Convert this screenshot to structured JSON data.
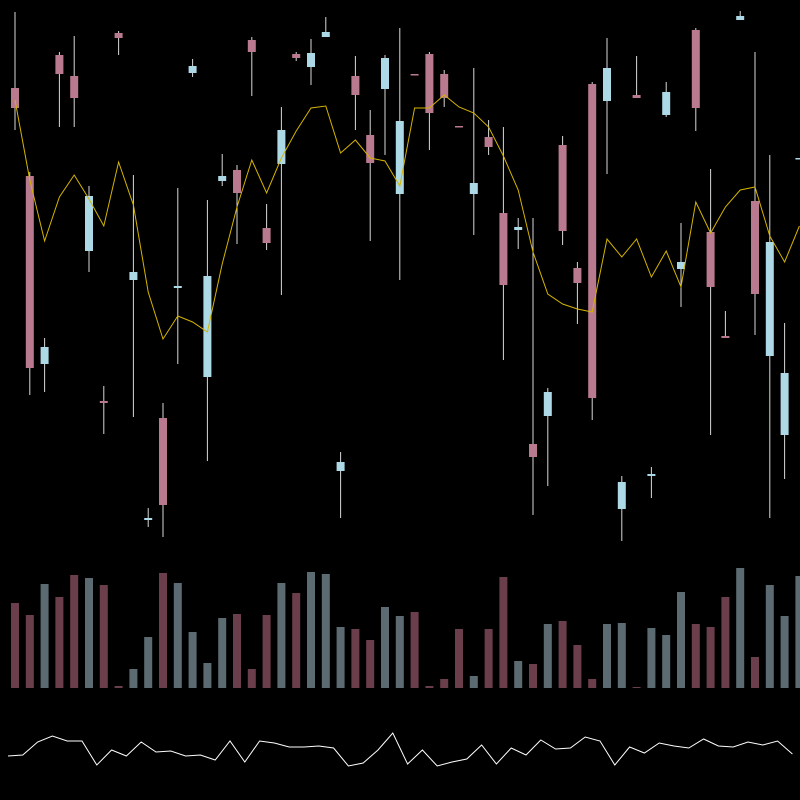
{
  "chart_data": {
    "type": "candlestick",
    "up_color": "#add8e6",
    "down_color": "#b97a8f",
    "volume_up_color": "#5b6b71",
    "volume_down_color": "#6b3e4c",
    "ma_color": "#d4b400",
    "indicator_color": "#ffffff",
    "ylim": [
      0,
      800
    ],
    "volume_ylim": [
      0,
      120
    ],
    "indicator_ylim": [
      0,
      800
    ],
    "open": [
      712,
      624,
      436,
      745,
      724,
      549,
      399,
      767,
      520,
      280,
      382,
      512,
      727,
      423,
      619,
      630,
      760,
      572,
      636,
      746,
      733,
      763,
      329,
      724,
      665,
      711,
      606,
      726,
      746,
      726,
      674,
      606,
      663,
      587,
      570,
      356,
      384,
      655,
      532,
      716,
      699,
      291,
      705,
      324,
      685,
      531,
      770,
      568,
      464,
      780,
      599,
      444,
      365,
      641
    ],
    "close": [
      692,
      432,
      453,
      726,
      702,
      604,
      397,
      762,
      528,
      282,
      295,
      514,
      734,
      524,
      624,
      607,
      748,
      557,
      670,
      742,
      747,
      768,
      338,
      705,
      637,
      742,
      679,
      725,
      687,
      702,
      673,
      617,
      653,
      515,
      573,
      343,
      408,
      569,
      517,
      402,
      732,
      318,
      702,
      326,
      708,
      538,
      692,
      513,
      462,
      784,
      506,
      558,
      427,
      642
    ],
    "high": [
      788,
      628,
      462,
      748,
      764,
      614,
      414,
      769,
      625,
      292,
      397,
      612,
      741,
      600,
      646,
      635,
      763,
      596,
      693,
      748,
      761,
      783,
      348,
      744,
      690,
      745,
      772,
      726,
      748,
      730,
      674,
      732,
      680,
      673,
      582,
      582,
      412,
      664,
      538,
      718,
      762,
      324,
      744,
      333,
      718,
      577,
      772,
      631,
      489,
      789,
      748,
      645,
      477,
      642
    ],
    "low": [
      670,
      405,
      408,
      673,
      673,
      528,
      366,
      745,
      383,
      273,
      263,
      436,
      723,
      339,
      614,
      556,
      704,
      550,
      505,
      739,
      715,
      763,
      282,
      670,
      559,
      645,
      520,
      725,
      650,
      693,
      673,
      565,
      645,
      440,
      551,
      285,
      314,
      555,
      476,
      380,
      626,
      259,
      702,
      302,
      683,
      493,
      669,
      365,
      462,
      780,
      465,
      282,
      321,
      641
    ],
    "ma": [
      700,
      620,
      559,
      603,
      625,
      601,
      574,
      638,
      595,
      508,
      461,
      484,
      478,
      468,
      536,
      593,
      640,
      607,
      642,
      669,
      692,
      694,
      647,
      660,
      642,
      639,
      614,
      692,
      692,
      705,
      693,
      687,
      673,
      644,
      610,
      548,
      506,
      496,
      491,
      488,
      561,
      543,
      561,
      523,
      549,
      513,
      598,
      567,
      593,
      610,
      613,
      564,
      538,
      574
    ],
    "volume": [
      85,
      73,
      104,
      91,
      113,
      110,
      103,
      2,
      19,
      51,
      115,
      105,
      56,
      25,
      70,
      74,
      19,
      73,
      105,
      95,
      116,
      114,
      61,
      59,
      48,
      81,
      72,
      76,
      2,
      9,
      59,
      12,
      59,
      111,
      27,
      24,
      64,
      67,
      43,
      9,
      64,
      65,
      1,
      60,
      53,
      96,
      64,
      61,
      91,
      120,
      31,
      103,
      72,
      112
    ],
    "indicator": [
      44,
      45,
      58,
      64,
      59,
      59,
      35,
      50,
      44,
      58,
      48,
      49,
      44,
      45,
      40,
      59,
      38,
      59,
      57,
      53,
      53,
      54,
      52,
      34,
      37,
      50,
      67,
      36,
      50,
      34,
      38,
      41,
      55,
      36,
      52,
      45,
      60,
      51,
      52,
      63,
      59,
      35,
      53,
      47,
      57,
      54,
      52,
      61,
      54,
      53,
      58,
      55,
      59,
      46
    ]
  }
}
